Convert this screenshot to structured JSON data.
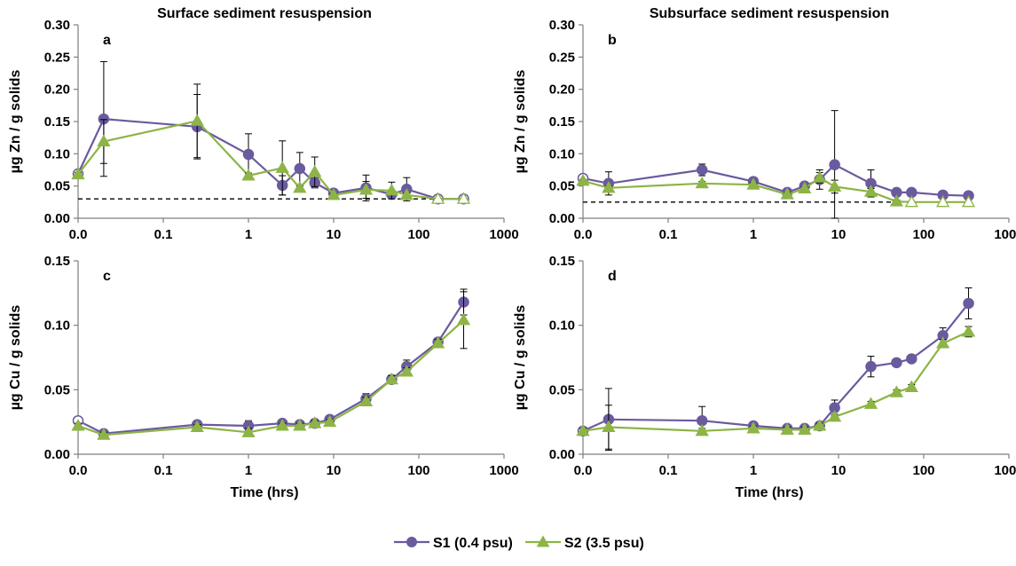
{
  "colors": {
    "s1": "#6a5a9e",
    "s2": "#8db446",
    "axis": "#7f7f7f",
    "error": "#000000",
    "detection": "#000000"
  },
  "legend": {
    "entries": [
      {
        "key": "s1",
        "label": "S1 (0.4 psu)",
        "marker": "circle"
      },
      {
        "key": "s2",
        "label": "S2 (3.5 psu)",
        "marker": "triangle"
      }
    ],
    "placement": "bottom-center"
  },
  "chart_data": [
    {
      "id": "a",
      "type": "scatter",
      "panel_label": "a",
      "title": "Surface sediment resuspension",
      "xlabel": "",
      "ylabel": "µg Zn / g solids",
      "x_scale": "log",
      "x_ticks": [
        "0.0",
        "0.1",
        "1",
        "10",
        "100",
        "1000"
      ],
      "x_tick_values": [
        0.01,
        0.1,
        1,
        10,
        100,
        1000
      ],
      "xlim": [
        0.01,
        1000
      ],
      "ylim": [
        0,
        0.3
      ],
      "y_ticks": [
        "0.00",
        "0.05",
        "0.10",
        "0.15",
        "0.20",
        "0.25",
        "0.30"
      ],
      "y_tick_values": [
        0,
        0.05,
        0.1,
        0.15,
        0.2,
        0.25,
        0.3
      ],
      "detection_limit": 0.03,
      "series": [
        {
          "name": "S1 (0.4 psu)",
          "key": "s1",
          "marker": "circle",
          "x": [
            0.01,
            0.02,
            0.25,
            1,
            2.5,
            4,
            6,
            10,
            24,
            48,
            72,
            168,
            336
          ],
          "y": [
            0.069,
            0.154,
            0.142,
            0.099,
            0.051,
            0.077,
            0.055,
            0.039,
            0.047,
            0.037,
            0.045,
            0.03,
            0.03
          ],
          "err": [
            0.004,
            0.089,
            0.05,
            0.032,
            0.015,
            0.025,
            0.008,
            0.004,
            0.02,
            0.006,
            0.018,
            0.001,
            0.001
          ],
          "hollow": [
            true,
            false,
            false,
            false,
            false,
            false,
            false,
            false,
            false,
            false,
            false,
            true,
            true
          ]
        },
        {
          "name": "S2 (3.5 psu)",
          "key": "s2",
          "marker": "triangle",
          "x": [
            0.01,
            0.02,
            0.25,
            1,
            2.5,
            4,
            6,
            10,
            24,
            48,
            72,
            168,
            336
          ],
          "y": [
            0.068,
            0.119,
            0.151,
            0.066,
            0.078,
            0.047,
            0.072,
            0.036,
            0.044,
            0.043,
            0.036,
            0.03,
            0.03
          ],
          "err": [
            0.003,
            0.034,
            0.057,
            0.004,
            0.042,
            0.003,
            0.023,
            0.002,
            0.013,
            0.013,
            0.003,
            0.001,
            0.001
          ],
          "hollow": [
            false,
            false,
            false,
            false,
            false,
            false,
            false,
            false,
            false,
            false,
            false,
            true,
            true
          ]
        }
      ]
    },
    {
      "id": "b",
      "type": "scatter",
      "panel_label": "b",
      "title": "Subsurface sediment resuspension",
      "xlabel": "",
      "ylabel": "µg Zn / g solids",
      "x_scale": "log",
      "x_ticks": [
        "0.0",
        "0.1",
        "1",
        "10",
        "100",
        "1000"
      ],
      "x_tick_values": [
        0.01,
        0.1,
        1,
        10,
        100,
        1000
      ],
      "xlim": [
        0.01,
        1000
      ],
      "ylim": [
        0,
        0.3
      ],
      "y_ticks": [
        "0.00",
        "0.05",
        "0.10",
        "0.15",
        "0.20",
        "0.25",
        "0.30"
      ],
      "y_tick_values": [
        0,
        0.05,
        0.1,
        0.15,
        0.2,
        0.25,
        0.3
      ],
      "detection_limit": 0.025,
      "series": [
        {
          "name": "S1 (0.4 psu)",
          "key": "s1",
          "marker": "circle",
          "x": [
            0.01,
            0.02,
            0.25,
            1,
            2.5,
            4,
            6,
            9,
            24,
            48,
            72,
            168,
            336
          ],
          "y": [
            0.062,
            0.054,
            0.075,
            0.057,
            0.04,
            0.05,
            0.06,
            0.083,
            0.054,
            0.04,
            0.04,
            0.036,
            0.035
          ],
          "err": [
            0.004,
            0.018,
            0.009,
            0.003,
            0.003,
            0.004,
            0.015,
            0.084,
            0.021,
            0.002,
            0.002,
            0.002,
            0.002
          ],
          "hollow": [
            true,
            false,
            false,
            false,
            false,
            false,
            false,
            false,
            false,
            false,
            false,
            false,
            false
          ]
        },
        {
          "name": "S2 (3.5 psu)",
          "key": "s2",
          "marker": "triangle",
          "x": [
            0.01,
            0.02,
            0.25,
            1,
            2.5,
            4,
            6,
            9,
            24,
            48,
            72,
            168,
            336
          ],
          "y": [
            0.058,
            0.047,
            0.054,
            0.052,
            0.037,
            0.046,
            0.063,
            0.049,
            0.041,
            0.026,
            0.025,
            0.025,
            0.025
          ],
          "err": [
            0.002,
            0.003,
            0.003,
            0.003,
            0.003,
            0.003,
            0.008,
            0.01,
            0.005,
            0.002,
            0.001,
            0.001,
            0.001
          ],
          "hollow": [
            false,
            false,
            false,
            false,
            false,
            false,
            false,
            false,
            false,
            false,
            true,
            true,
            true
          ]
        }
      ]
    },
    {
      "id": "c",
      "type": "scatter",
      "panel_label": "c",
      "title": "",
      "xlabel": "Time (hrs)",
      "ylabel": "µg Cu / g solids",
      "x_scale": "log",
      "x_ticks": [
        "0.0",
        "0.1",
        "1",
        "10",
        "100",
        "1000"
      ],
      "x_tick_values": [
        0.01,
        0.1,
        1,
        10,
        100,
        1000
      ],
      "xlim": [
        0.01,
        1000
      ],
      "ylim": [
        0,
        0.15
      ],
      "y_ticks": [
        "0.00",
        "0.05",
        "0.10",
        "0.15"
      ],
      "y_tick_values": [
        0,
        0.05,
        0.1,
        0.15
      ],
      "series": [
        {
          "name": "S1 (0.4 psu)",
          "key": "s1",
          "marker": "circle",
          "x": [
            0.01,
            0.02,
            0.25,
            1,
            2.5,
            4,
            6,
            9,
            24,
            48,
            72,
            168,
            336
          ],
          "y": [
            0.026,
            0.016,
            0.023,
            0.022,
            0.024,
            0.023,
            0.024,
            0.027,
            0.043,
            0.058,
            0.068,
            0.087,
            0.118
          ],
          "err": [
            0.002,
            0.002,
            0.002,
            0.004,
            0.002,
            0.002,
            0.002,
            0.002,
            0.004,
            0.003,
            0.005,
            0.003,
            0.01
          ],
          "hollow": [
            true,
            false,
            false,
            false,
            false,
            false,
            false,
            false,
            false,
            false,
            false,
            false,
            false
          ]
        },
        {
          "name": "S2 (3.5 psu)",
          "key": "s2",
          "marker": "triangle",
          "x": [
            0.01,
            0.02,
            0.25,
            1,
            2.5,
            4,
            6,
            9,
            24,
            48,
            72,
            168,
            336
          ],
          "y": [
            0.022,
            0.015,
            0.021,
            0.017,
            0.022,
            0.022,
            0.024,
            0.025,
            0.041,
            0.058,
            0.064,
            0.086,
            0.104
          ],
          "err": [
            0.002,
            0.002,
            0.002,
            0.003,
            0.002,
            0.002,
            0.002,
            0.002,
            0.003,
            0.003,
            0.003,
            0.003,
            0.022
          ],
          "hollow": [
            false,
            false,
            false,
            false,
            false,
            false,
            false,
            false,
            false,
            false,
            false,
            false,
            false
          ]
        }
      ]
    },
    {
      "id": "d",
      "type": "scatter",
      "panel_label": "d",
      "title": "",
      "xlabel": "Time (hrs)",
      "ylabel": "µg Cu / g solids",
      "x_scale": "log",
      "x_ticks": [
        "0.0",
        "0.1",
        "1",
        "10",
        "100",
        "1000"
      ],
      "x_tick_values": [
        0.01,
        0.1,
        1,
        10,
        100,
        1000
      ],
      "xlim": [
        0.01,
        1000
      ],
      "ylim": [
        0,
        0.15
      ],
      "y_ticks": [
        "0.00",
        "0.05",
        "0.10",
        "0.15"
      ],
      "y_tick_values": [
        0,
        0.05,
        0.1,
        0.15
      ],
      "series": [
        {
          "name": "S1 (0.4 psu)",
          "key": "s1",
          "marker": "circle",
          "x": [
            0.01,
            0.02,
            0.25,
            1,
            2.5,
            4,
            6,
            9,
            24,
            48,
            72,
            168,
            336
          ],
          "y": [
            0.018,
            0.027,
            0.026,
            0.022,
            0.02,
            0.02,
            0.022,
            0.036,
            0.068,
            0.071,
            0.074,
            0.092,
            0.117
          ],
          "err": [
            0.002,
            0.024,
            0.011,
            0.002,
            0.002,
            0.002,
            0.002,
            0.006,
            0.008,
            0.002,
            0.002,
            0.006,
            0.012
          ],
          "hollow": [
            true,
            false,
            false,
            false,
            false,
            false,
            false,
            false,
            false,
            false,
            false,
            false,
            false
          ]
        },
        {
          "name": "S2 (3.5 psu)",
          "key": "s2",
          "marker": "triangle",
          "x": [
            0.01,
            0.02,
            0.25,
            1,
            2.5,
            4,
            6,
            9,
            24,
            48,
            72,
            168,
            336
          ],
          "y": [
            0.018,
            0.021,
            0.018,
            0.02,
            0.019,
            0.019,
            0.022,
            0.029,
            0.039,
            0.048,
            0.052,
            0.086,
            0.095
          ],
          "err": [
            0.002,
            0.017,
            0.002,
            0.002,
            0.002,
            0.002,
            0.002,
            0.002,
            0.002,
            0.002,
            0.002,
            0.003,
            0.004
          ],
          "hollow": [
            false,
            false,
            false,
            false,
            false,
            false,
            false,
            false,
            false,
            false,
            false,
            false,
            false
          ]
        }
      ]
    }
  ]
}
